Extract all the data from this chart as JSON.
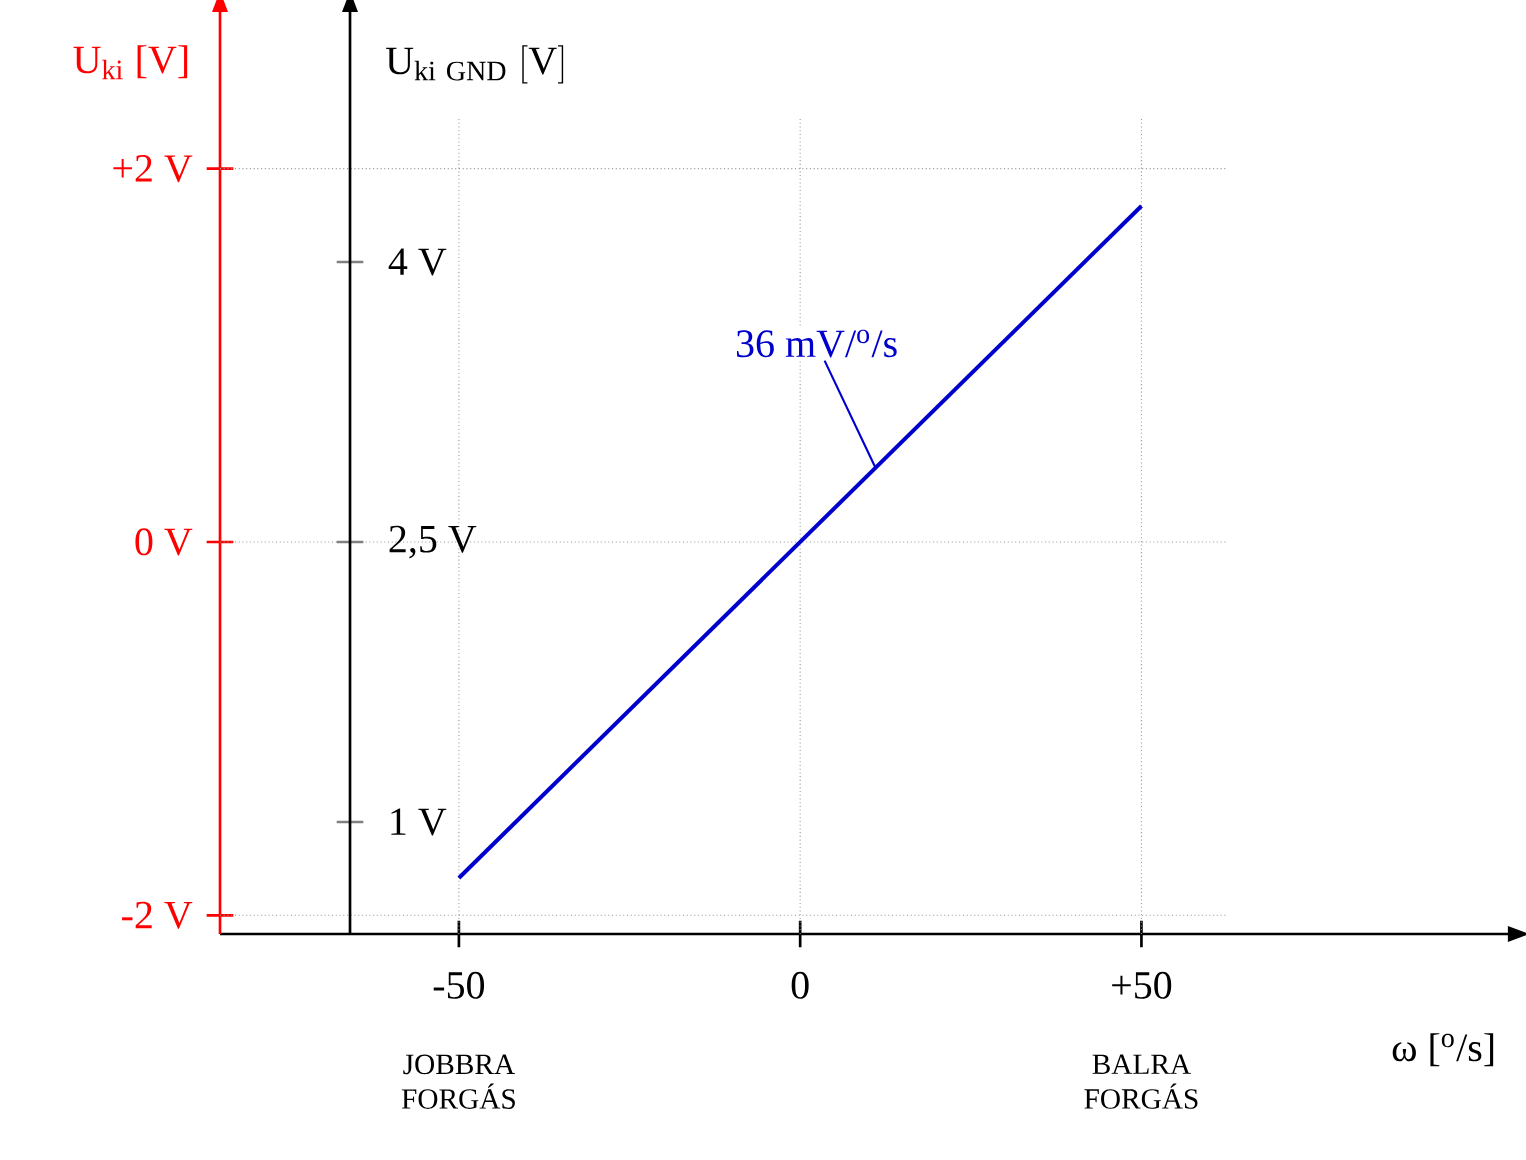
{
  "chart_data": {
    "type": "line",
    "xlabel": "ω [$^{o}$/s]",
    "ylabel": "U$_{ki}$  [V]",
    "y2label": "\\mathrm{U}_{\\mathrm{ki\\ GND}}\\ \\mathrm{[V]}",
    "xlim": [
      -85,
      104
    ],
    "ylim": [
      -2.1,
      2.85
    ],
    "y2lim": [
      0.4,
      5.35
    ],
    "xticks": [
      -50,
      0,
      {
        "value": 50,
        "label": "+50"
      }
    ],
    "yticks": [
      {
        "value": -2,
        "label": "-2 V"
      },
      {
        "value": 0,
        "label": "0 V"
      },
      {
        "value": 2,
        "label": "+2 V"
      }
    ],
    "y2ticks": [
      {
        "value": 1,
        "label": "1 V"
      },
      {
        "value": 2.5,
        "label": "2,5 V"
      },
      {
        "value": 4,
        "label": "4 V"
      }
    ],
    "series": [
      {
        "color": "#0000cc",
        "x": [
          -50,
          50
        ],
        "values": [
          -1.8,
          1.8
        ]
      }
    ],
    "ref_lines": [
      {
        "axis": "x",
        "value": -50,
        "line_style": "dotted",
        "color": "#999999"
      },
      {
        "axis": "x",
        "value": 0,
        "line_style": "dotted",
        "color": "#999999"
      },
      {
        "axis": "x",
        "value": 50,
        "line_style": "dotted",
        "color": "#999999"
      },
      {
        "axis": "y",
        "value": -2,
        "line_style": "dotted",
        "color": "#999999"
      },
      {
        "axis": "y",
        "value": 0,
        "line_style": "dotted",
        "color": "#999999"
      },
      {
        "axis": "y",
        "value": 2,
        "line_style": "dotted",
        "color": "#999999"
      }
    ],
    "annotations": [
      {
        "text": "36 mV/$^{o}$/s",
        "x": 11,
        "y": 0.4
      },
      "JOBBRA FORGÁS",
      "BALRA FORGÁS"
    ]
  }
}
